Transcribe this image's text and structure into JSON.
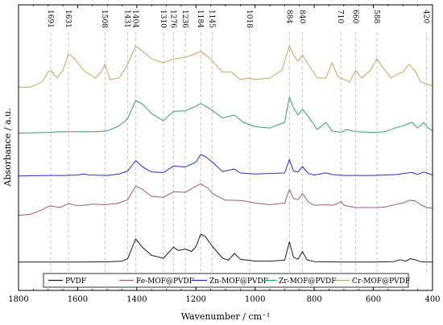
{
  "chart_data": {
    "type": "line",
    "title": "",
    "xlabel": "Wavenumber / cm⁻¹",
    "ylabel": "Absorbance / a.u.",
    "xlim": [
      1800,
      400
    ],
    "x_reversed": true,
    "x_ticks": [
      1800,
      1600,
      1400,
      1200,
      1000,
      800,
      600,
      400
    ],
    "y_ticks_shown": false,
    "grid": false,
    "legend_position": "bottom",
    "peak_labels": [
      1691,
      1631,
      1508,
      1431,
      1404,
      1310,
      1276,
      1236,
      1184,
      1145,
      1018,
      884,
      840,
      710,
      660,
      588,
      420
    ],
    "series": [
      {
        "name": "PVDF",
        "color": "#1a1a1a",
        "points": [
          [
            1800,
            0.02
          ],
          [
            1700,
            0.02
          ],
          [
            1600,
            0.02
          ],
          [
            1500,
            0.025
          ],
          [
            1450,
            0.04
          ],
          [
            1431,
            0.09
          ],
          [
            1404,
            0.5
          ],
          [
            1380,
            0.32
          ],
          [
            1350,
            0.16
          ],
          [
            1310,
            0.1
          ],
          [
            1276,
            0.33
          ],
          [
            1260,
            0.26
          ],
          [
            1236,
            0.29
          ],
          [
            1215,
            0.24
          ],
          [
            1200,
            0.34
          ],
          [
            1184,
            0.6
          ],
          [
            1170,
            0.56
          ],
          [
            1145,
            0.35
          ],
          [
            1110,
            0.1
          ],
          [
            1090,
            0.06
          ],
          [
            1070,
            0.2
          ],
          [
            1050,
            0.08
          ],
          [
            1000,
            0.04
          ],
          [
            950,
            0.04
          ],
          [
            900,
            0.06
          ],
          [
            884,
            0.44
          ],
          [
            870,
            0.12
          ],
          [
            855,
            0.08
          ],
          [
            840,
            0.24
          ],
          [
            825,
            0.07
          ],
          [
            800,
            0.03
          ],
          [
            700,
            0.02
          ],
          [
            600,
            0.02
          ],
          [
            530,
            0.03
          ],
          [
            510,
            0.07
          ],
          [
            490,
            0.04
          ],
          [
            475,
            0.09
          ],
          [
            460,
            0.07
          ],
          [
            440,
            0.03
          ],
          [
            420,
            0.02
          ],
          [
            400,
            0.02
          ]
        ]
      },
      {
        "name": "Fe-MOF@PVDF",
        "color": "#9e5a7a",
        "points": [
          [
            1800,
            0.06
          ],
          [
            1760,
            0.08
          ],
          [
            1720,
            0.16
          ],
          [
            1700,
            0.22
          ],
          [
            1691,
            0.23
          ],
          [
            1660,
            0.2
          ],
          [
            1631,
            0.27
          ],
          [
            1610,
            0.24
          ],
          [
            1580,
            0.24
          ],
          [
            1550,
            0.26
          ],
          [
            1508,
            0.25
          ],
          [
            1470,
            0.27
          ],
          [
            1450,
            0.3
          ],
          [
            1431,
            0.34
          ],
          [
            1404,
            0.58
          ],
          [
            1380,
            0.52
          ],
          [
            1350,
            0.4
          ],
          [
            1310,
            0.38
          ],
          [
            1276,
            0.48
          ],
          [
            1236,
            0.47
          ],
          [
            1200,
            0.58
          ],
          [
            1184,
            0.62
          ],
          [
            1160,
            0.55
          ],
          [
            1145,
            0.45
          ],
          [
            1100,
            0.33
          ],
          [
            1070,
            0.33
          ],
          [
            1040,
            0.32
          ],
          [
            1000,
            0.28
          ],
          [
            950,
            0.25
          ],
          [
            900,
            0.28
          ],
          [
            884,
            0.52
          ],
          [
            870,
            0.36
          ],
          [
            855,
            0.34
          ],
          [
            840,
            0.45
          ],
          [
            820,
            0.3
          ],
          [
            800,
            0.24
          ],
          [
            760,
            0.25
          ],
          [
            740,
            0.24
          ],
          [
            720,
            0.27
          ],
          [
            710,
            0.31
          ],
          [
            700,
            0.24
          ],
          [
            660,
            0.2
          ],
          [
            620,
            0.2
          ],
          [
            588,
            0.2
          ],
          [
            560,
            0.21
          ],
          [
            520,
            0.26
          ],
          [
            500,
            0.28
          ],
          [
            480,
            0.33
          ],
          [
            460,
            0.32
          ],
          [
            440,
            0.25
          ],
          [
            420,
            0.2
          ],
          [
            400,
            0.19
          ]
        ]
      },
      {
        "name": "Zn-MOF@PVDF",
        "color": "#2b2bc4",
        "points": [
          [
            1800,
            0.02
          ],
          [
            1700,
            0.03
          ],
          [
            1650,
            0.03
          ],
          [
            1600,
            0.04
          ],
          [
            1580,
            0.06
          ],
          [
            1560,
            0.04
          ],
          [
            1500,
            0.03
          ],
          [
            1460,
            0.06
          ],
          [
            1431,
            0.12
          ],
          [
            1404,
            0.33
          ],
          [
            1380,
            0.2
          ],
          [
            1350,
            0.1
          ],
          [
            1310,
            0.09
          ],
          [
            1276,
            0.22
          ],
          [
            1236,
            0.2
          ],
          [
            1200,
            0.3
          ],
          [
            1184,
            0.45
          ],
          [
            1170,
            0.42
          ],
          [
            1145,
            0.3
          ],
          [
            1110,
            0.11
          ],
          [
            1070,
            0.16
          ],
          [
            1050,
            0.08
          ],
          [
            1000,
            0.06
          ],
          [
            900,
            0.08
          ],
          [
            884,
            0.35
          ],
          [
            870,
            0.12
          ],
          [
            855,
            0.1
          ],
          [
            840,
            0.21
          ],
          [
            820,
            0.07
          ],
          [
            800,
            0.04
          ],
          [
            760,
            0.08
          ],
          [
            740,
            0.05
          ],
          [
            700,
            0.03
          ],
          [
            600,
            0.03
          ],
          [
            520,
            0.05
          ],
          [
            500,
            0.07
          ],
          [
            470,
            0.09
          ],
          [
            450,
            0.05
          ],
          [
            430,
            0.1
          ],
          [
            420,
            0.08
          ],
          [
            400,
            0.04
          ]
        ]
      },
      {
        "name": "Zr-MOF@PVDF",
        "color": "#3aa06a",
        "points": [
          [
            1800,
            0.05
          ],
          [
            1700,
            0.06
          ],
          [
            1660,
            0.07
          ],
          [
            1600,
            0.07
          ],
          [
            1540,
            0.07
          ],
          [
            1500,
            0.08
          ],
          [
            1460,
            0.15
          ],
          [
            1431,
            0.25
          ],
          [
            1404,
            0.5
          ],
          [
            1380,
            0.45
          ],
          [
            1350,
            0.32
          ],
          [
            1310,
            0.22
          ],
          [
            1290,
            0.3
          ],
          [
            1276,
            0.35
          ],
          [
            1236,
            0.36
          ],
          [
            1200,
            0.42
          ],
          [
            1184,
            0.46
          ],
          [
            1150,
            0.38
          ],
          [
            1110,
            0.26
          ],
          [
            1070,
            0.3
          ],
          [
            1040,
            0.2
          ],
          [
            1000,
            0.14
          ],
          [
            950,
            0.12
          ],
          [
            900,
            0.2
          ],
          [
            884,
            0.55
          ],
          [
            870,
            0.4
          ],
          [
            855,
            0.3
          ],
          [
            840,
            0.38
          ],
          [
            820,
            0.28
          ],
          [
            790,
            0.1
          ],
          [
            760,
            0.2
          ],
          [
            740,
            0.08
          ],
          [
            710,
            0.06
          ],
          [
            690,
            0.1
          ],
          [
            660,
            0.07
          ],
          [
            600,
            0.06
          ],
          [
            560,
            0.07
          ],
          [
            520,
            0.13
          ],
          [
            500,
            0.15
          ],
          [
            470,
            0.2
          ],
          [
            450,
            0.12
          ],
          [
            430,
            0.2
          ],
          [
            420,
            0.14
          ],
          [
            400,
            0.08
          ]
        ]
      },
      {
        "name": "Cr-MOF@PVDF",
        "color": "#c9a261",
        "points": [
          [
            1800,
            0.08
          ],
          [
            1760,
            0.08
          ],
          [
            1720,
            0.15
          ],
          [
            1700,
            0.28
          ],
          [
            1691,
            0.3
          ],
          [
            1670,
            0.2
          ],
          [
            1650,
            0.3
          ],
          [
            1631,
            0.52
          ],
          [
            1610,
            0.45
          ],
          [
            1580,
            0.3
          ],
          [
            1540,
            0.2
          ],
          [
            1520,
            0.28
          ],
          [
            1508,
            0.38
          ],
          [
            1490,
            0.18
          ],
          [
            1460,
            0.2
          ],
          [
            1431,
            0.38
          ],
          [
            1404,
            0.62
          ],
          [
            1390,
            0.58
          ],
          [
            1350,
            0.45
          ],
          [
            1310,
            0.4
          ],
          [
            1276,
            0.45
          ],
          [
            1236,
            0.47
          ],
          [
            1200,
            0.52
          ],
          [
            1184,
            0.55
          ],
          [
            1150,
            0.45
          ],
          [
            1110,
            0.28
          ],
          [
            1080,
            0.28
          ],
          [
            1050,
            0.18
          ],
          [
            1018,
            0.2
          ],
          [
            1000,
            0.18
          ],
          [
            950,
            0.2
          ],
          [
            910,
            0.3
          ],
          [
            884,
            0.62
          ],
          [
            870,
            0.5
          ],
          [
            855,
            0.42
          ],
          [
            840,
            0.5
          ],
          [
            820,
            0.38
          ],
          [
            790,
            0.2
          ],
          [
            760,
            0.2
          ],
          [
            740,
            0.4
          ],
          [
            720,
            0.22
          ],
          [
            700,
            0.18
          ],
          [
            680,
            0.15
          ],
          [
            660,
            0.3
          ],
          [
            640,
            0.2
          ],
          [
            610,
            0.3
          ],
          [
            588,
            0.45
          ],
          [
            570,
            0.35
          ],
          [
            540,
            0.2
          ],
          [
            520,
            0.25
          ],
          [
            500,
            0.28
          ],
          [
            480,
            0.38
          ],
          [
            460,
            0.3
          ],
          [
            440,
            0.15
          ],
          [
            420,
            0.12
          ],
          [
            400,
            0.1
          ]
        ]
      }
    ]
  }
}
